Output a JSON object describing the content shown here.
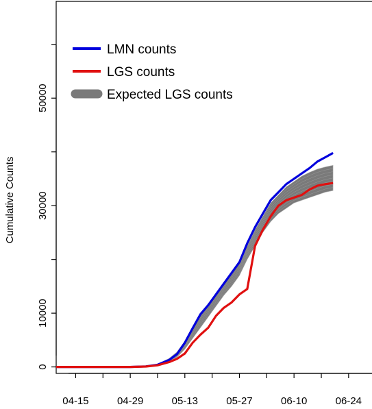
{
  "chart_data": {
    "type": "line",
    "title": "",
    "xlabel": "",
    "ylabel": "Cumulative Counts",
    "x_ticks": [
      "04-15",
      "04-29",
      "05-13",
      "05-27",
      "06-10",
      "06-24"
    ],
    "y_ticks": [
      0,
      10000,
      30000,
      50000
    ],
    "xlim": [
      "04-10",
      "06-30"
    ],
    "ylim": [
      -1200,
      68000
    ],
    "legend_position": "top-left",
    "band_label": "Expected LGS counts",
    "series": [
      {
        "name": "LMN counts",
        "color": "#0000dd",
        "x": [
          "04-10",
          "04-15",
          "04-22",
          "04-29",
          "05-03",
          "05-06",
          "05-09",
          "05-11",
          "05-13",
          "05-15",
          "05-17",
          "05-19",
          "05-21",
          "05-23",
          "05-25",
          "05-27",
          "05-29",
          "05-31",
          "06-02",
          "06-04",
          "06-06",
          "06-08",
          "06-10",
          "06-12",
          "06-14",
          "06-16",
          "06-18",
          "06-20"
        ],
        "values": [
          0,
          0,
          0,
          0,
          100,
          400,
          1300,
          2400,
          4500,
          7200,
          9800,
          11500,
          13500,
          15500,
          17500,
          19500,
          23000,
          26000,
          28500,
          31000,
          32500,
          34000,
          35000,
          36000,
          37000,
          38200,
          39000,
          39800
        ]
      },
      {
        "name": "LGS counts",
        "color": "#e01010",
        "x": [
          "04-10",
          "04-15",
          "04-22",
          "04-29",
          "05-03",
          "05-06",
          "05-09",
          "05-11",
          "05-13",
          "05-15",
          "05-17",
          "05-19",
          "05-21",
          "05-23",
          "05-25",
          "05-27",
          "05-29",
          "05-31",
          "06-02",
          "06-04",
          "06-06",
          "06-08",
          "06-10",
          "06-12",
          "06-14",
          "06-16",
          "06-18",
          "06-20"
        ],
        "values": [
          0,
          0,
          0,
          0,
          80,
          300,
          900,
          1500,
          2500,
          4500,
          6000,
          7300,
          9500,
          11000,
          12000,
          13500,
          14500,
          22500,
          25500,
          28000,
          30000,
          31000,
          31500,
          32000,
          33000,
          33700,
          34000,
          34200
        ]
      }
    ],
    "band": {
      "name": "Expected LGS counts",
      "color": "#7a7a7a",
      "x": [
        "04-10",
        "04-15",
        "04-22",
        "04-29",
        "05-03",
        "05-06",
        "05-09",
        "05-11",
        "05-13",
        "05-15",
        "05-17",
        "05-19",
        "05-21",
        "05-23",
        "05-25",
        "05-27",
        "05-29",
        "05-31",
        "06-02",
        "06-04",
        "06-06",
        "06-08",
        "06-10",
        "06-12",
        "06-14",
        "06-16",
        "06-18",
        "06-20"
      ],
      "lower": [
        0,
        0,
        0,
        0,
        80,
        300,
        1000,
        1800,
        3300,
        5300,
        7300,
        9300,
        11300,
        13300,
        15000,
        17000,
        20000,
        22500,
        25000,
        27000,
        28500,
        29500,
        30500,
        31000,
        31500,
        32000,
        32500,
        32800
      ],
      "upper": [
        0,
        0,
        0,
        0,
        120,
        500,
        1600,
        2800,
        4800,
        7500,
        9800,
        11800,
        13500,
        15500,
        17500,
        19500,
        22500,
        25500,
        28000,
        30500,
        32000,
        33500,
        34500,
        35500,
        36200,
        36800,
        37200,
        37500
      ]
    }
  }
}
